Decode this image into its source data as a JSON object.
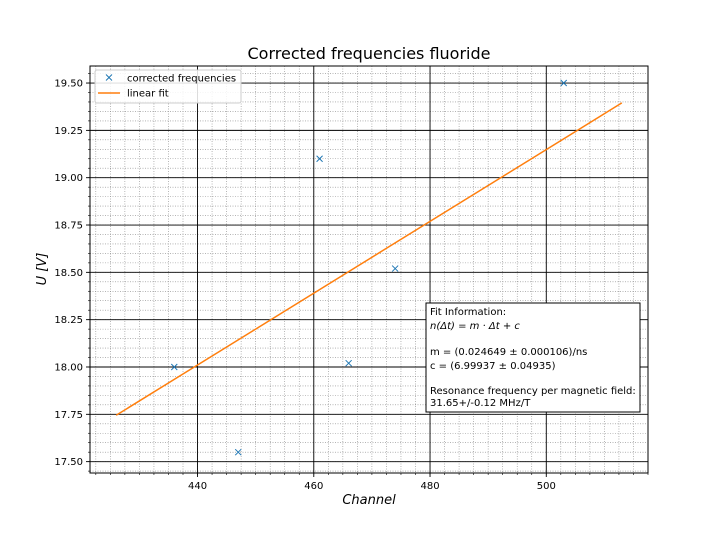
{
  "chart_data": {
    "type": "scatter",
    "title": "Corrected frequencies fluoride",
    "xlabel": "Channel",
    "ylabel": "U [V]",
    "xlim": [
      421.5,
      517.5
    ],
    "ylim": [
      17.44,
      19.59
    ],
    "xticks": [
      440,
      460,
      480,
      500
    ],
    "xtick_labels": [
      "440",
      "460",
      "480",
      "500"
    ],
    "yticks": [
      17.5,
      17.75,
      18.0,
      18.25,
      18.5,
      18.75,
      19.0,
      19.25,
      19.5
    ],
    "ytick_labels": [
      "17.50",
      "17.75",
      "18.00",
      "18.25",
      "18.50",
      "18.75",
      "19.00",
      "19.25",
      "19.50"
    ],
    "grid": {
      "major": true,
      "minor": true
    },
    "legend_position": "top-left",
    "series": [
      {
        "name": "corrected frequencies",
        "kind": "scatter",
        "marker": "x",
        "color": "#1f77b4",
        "x": [
          436,
          447,
          461,
          466,
          474,
          503
        ],
        "y": [
          18.0,
          17.55,
          19.1,
          18.02,
          18.52,
          19.5
        ]
      },
      {
        "name": "linear fit",
        "kind": "line",
        "color": "#ff7f0e",
        "x": [
          426,
          513
        ],
        "y": [
          17.745,
          19.395
        ]
      }
    ],
    "annotation": {
      "lines": [
        "Fit Information:",
        "n(Δt) = m · Δt + c",
        "",
        "m = (0.024649 ± 0.000106)/ns",
        "c = (6.99937 ± 0.04935)",
        "",
        "Resonance frequency per magnetic field:",
        "31.65+/-0.12 MHz/T"
      ]
    }
  }
}
